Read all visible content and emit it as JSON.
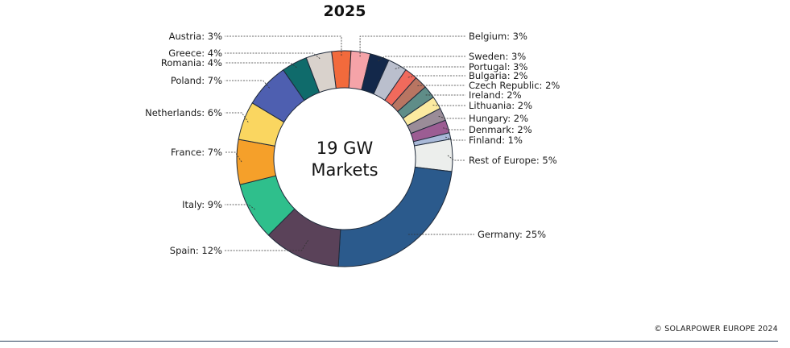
{
  "chart_data": {
    "type": "pie",
    "variant": "donut",
    "title": "2025",
    "center_label": [
      "19 GW",
      "Markets"
    ],
    "legend": "none (direct labels)",
    "slices": [
      {
        "name": "Austria",
        "value": 3,
        "label": "Austria: 3%",
        "color": "#f26a3c"
      },
      {
        "name": "Belgium",
        "value": 3,
        "label": "Belgium: 3%",
        "color": "#f5a3a8"
      },
      {
        "name": "Sweden",
        "value": 3,
        "label": "Sweden: 3%",
        "color": "#13284a"
      },
      {
        "name": "Portugal",
        "value": 3,
        "label": "Portugal: 3%",
        "color": "#babfcd"
      },
      {
        "name": "Bulgaria",
        "value": 2,
        "label": "Bulgaria: 2%",
        "color": "#f06a5c"
      },
      {
        "name": "Czech Republic",
        "value": 2,
        "label": "Czech Republic: 2%",
        "color": "#b87562"
      },
      {
        "name": "Ireland",
        "value": 2,
        "label": "Ireland: 2%",
        "color": "#5f8d88"
      },
      {
        "name": "Lithuania",
        "value": 2,
        "label": "Lithuania: 2%",
        "color": "#fbeaa0"
      },
      {
        "name": "Hungary",
        "value": 2,
        "label": "Hungary: 2%",
        "color": "#9a8c98"
      },
      {
        "name": "Denmark",
        "value": 2,
        "label": "Denmark: 2%",
        "color": "#9c5d93"
      },
      {
        "name": "Finland",
        "value": 1,
        "label": "Finland: 1%",
        "color": "#a9b9d8"
      },
      {
        "name": "Rest of Europe",
        "value": 5,
        "label": "Rest of Europe: 5%",
        "color": "#eceeec"
      },
      {
        "name": "Germany",
        "value": 25,
        "label": "Germany: 25%",
        "color": "#2b5a8c"
      },
      {
        "name": "Spain",
        "value": 12,
        "label": "Spain: 12%",
        "color": "#5a4259"
      },
      {
        "name": "Italy",
        "value": 9,
        "label": "Italy: 9%",
        "color": "#2fbf8c"
      },
      {
        "name": "France",
        "value": 7,
        "label": "France: 7%",
        "color": "#f5a02a"
      },
      {
        "name": "Netherlands",
        "value": 6,
        "label": "Netherlands: 6%",
        "color": "#fad660"
      },
      {
        "name": "Poland",
        "value": 7,
        "label": "Poland: 7%",
        "color": "#4e5fb0"
      },
      {
        "name": "Romania",
        "value": 4,
        "label": "Romania: 4%",
        "color": "#0f6b6b"
      },
      {
        "name": "Greece",
        "value": 4,
        "label": "Greece: 4%",
        "color": "#d9d2cc"
      }
    ]
  },
  "footer": {
    "credit": "© SOLARPOWER EUROPE 2024"
  }
}
